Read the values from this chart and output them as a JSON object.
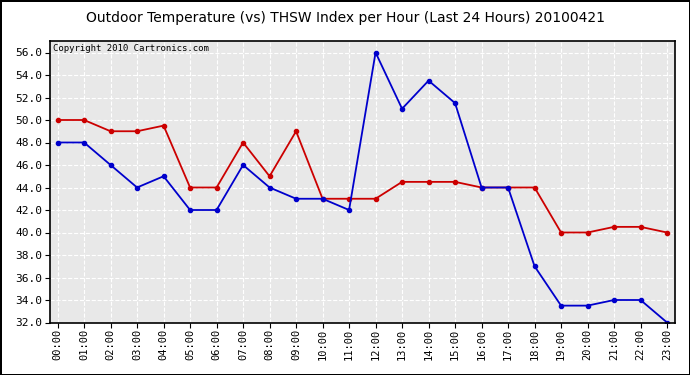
{
  "title": "Outdoor Temperature (vs) THSW Index per Hour (Last 24 Hours) 20100421",
  "copyright": "Copyright 2010 Cartronics.com",
  "hours": [
    "00:00",
    "01:00",
    "02:00",
    "03:00",
    "04:00",
    "05:00",
    "06:00",
    "07:00",
    "08:00",
    "09:00",
    "10:00",
    "11:00",
    "12:00",
    "13:00",
    "14:00",
    "15:00",
    "16:00",
    "17:00",
    "18:00",
    "19:00",
    "20:00",
    "21:00",
    "22:00",
    "23:00"
  ],
  "temp": [
    48.0,
    48.0,
    46.0,
    44.0,
    45.0,
    42.0,
    42.0,
    46.0,
    44.0,
    43.0,
    43.0,
    42.0,
    56.0,
    51.0,
    53.5,
    51.5,
    44.0,
    44.0,
    37.0,
    33.5,
    33.5,
    34.0,
    34.0,
    32.0
  ],
  "thsw": [
    50.0,
    50.0,
    49.0,
    49.0,
    49.5,
    44.0,
    44.0,
    48.0,
    45.0,
    49.0,
    43.0,
    43.0,
    43.0,
    44.5,
    44.5,
    44.5,
    44.0,
    44.0,
    44.0,
    40.0,
    40.0,
    40.5,
    40.5,
    40.0
  ],
  "ylim": [
    32.0,
    57.0
  ],
  "yticks": [
    32.0,
    34.0,
    36.0,
    38.0,
    40.0,
    42.0,
    44.0,
    46.0,
    48.0,
    50.0,
    52.0,
    54.0,
    56.0
  ],
  "temp_color": "#0000cc",
  "thsw_color": "#cc0000",
  "bg_color": "#ffffff",
  "plot_bg_color": "#e8e8e8",
  "grid_color": "#ffffff",
  "title_fontsize": 10,
  "copyright_fontsize": 6.5
}
